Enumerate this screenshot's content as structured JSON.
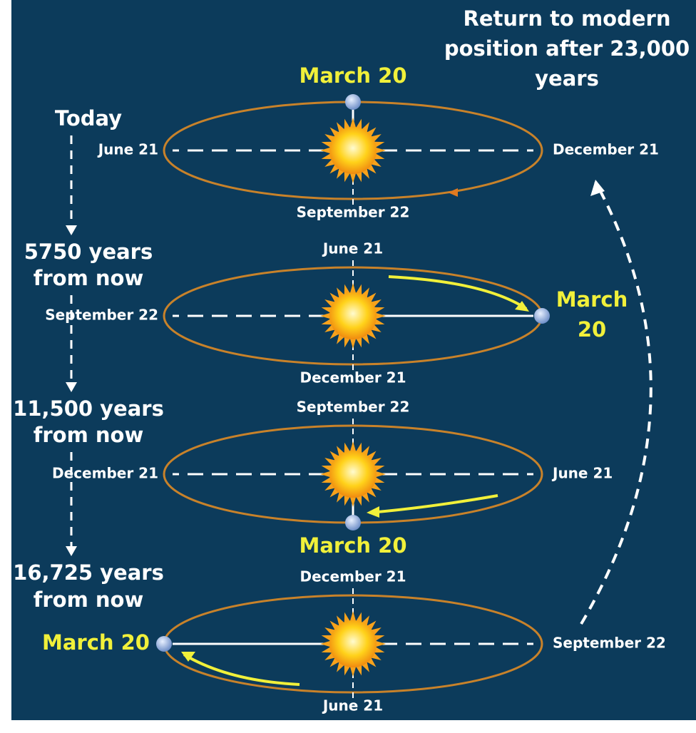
{
  "return_label": [
    "Return to modern",
    "position after 23,000",
    "years"
  ],
  "stages": [
    {
      "time": [
        "Today"
      ],
      "top": [
        "March 20"
      ],
      "bottom": [
        "September 22"
      ],
      "left": [
        "June 21"
      ],
      "right": [
        "December 21"
      ]
    },
    {
      "time": [
        "5750 years",
        "from now"
      ],
      "top": [
        "June 21"
      ],
      "bottom": [
        "December 21"
      ],
      "left": [
        "September 22"
      ],
      "right": [
        "March",
        "20"
      ]
    },
    {
      "time": [
        "11,500 years",
        "from now"
      ],
      "top": [
        "September 22"
      ],
      "bottom": [
        "March 20"
      ],
      "left": [
        "December 21"
      ],
      "right": [
        "June 21"
      ]
    },
    {
      "time": [
        "16,725 years",
        "from now"
      ],
      "top": [
        "December 21"
      ],
      "bottom": [
        "June 21"
      ],
      "left": [
        "March 20"
      ],
      "right": [
        "September 22"
      ]
    }
  ]
}
